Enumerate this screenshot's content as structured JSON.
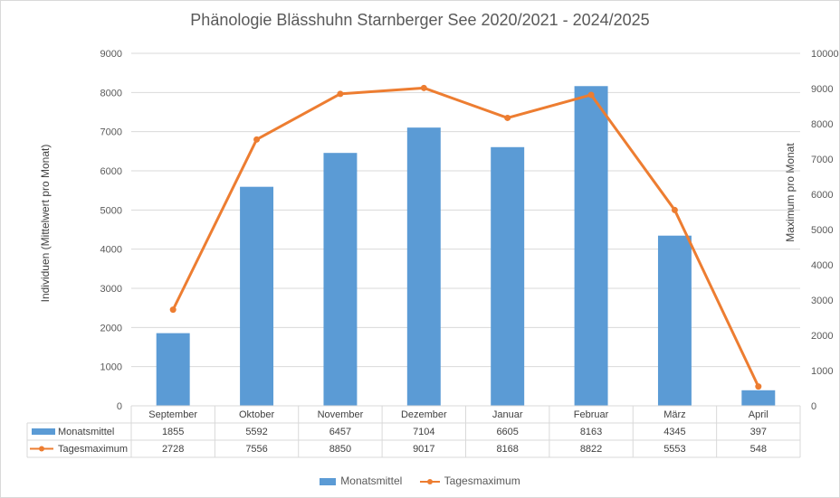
{
  "colors": {
    "bar": "#5b9bd5",
    "line": "#ed7d31",
    "grid": "#d9d9d9",
    "text": "#595959"
  },
  "chart_data": {
    "type": "bar",
    "title": "Phänologie Blässhuhn Starnberger See 2020/2021 - 2024/2025",
    "ylabel": "Individuen (Mittelwert pro Monat)",
    "y2label": "Maximum pro Monat",
    "ylim": [
      0,
      9000
    ],
    "y2lim": [
      0,
      10000
    ],
    "yticks": [
      "0",
      "1000",
      "2000",
      "3000",
      "4000",
      "5000",
      "6000",
      "7000",
      "8000",
      "9000"
    ],
    "y2ticks": [
      "0",
      "1000",
      "2000",
      "3000",
      "4000",
      "5000",
      "6000",
      "7000",
      "8000",
      "9000",
      "10000"
    ],
    "categories": [
      "September",
      "Oktober",
      "November",
      "Dezember",
      "Januar",
      "Februar",
      "März",
      "April"
    ],
    "series": [
      {
        "name": "Monatsmittel",
        "type": "bar",
        "axis": "left",
        "values": [
          1855,
          5592,
          6457,
          7104,
          6605,
          8163,
          4345,
          397
        ]
      },
      {
        "name": "Tagesmaximum",
        "type": "line",
        "axis": "right",
        "values": [
          2728,
          7556,
          8850,
          9017,
          8168,
          8822,
          5553,
          548
        ]
      }
    ],
    "grid": true,
    "legend": "bottom",
    "data_table": true
  }
}
